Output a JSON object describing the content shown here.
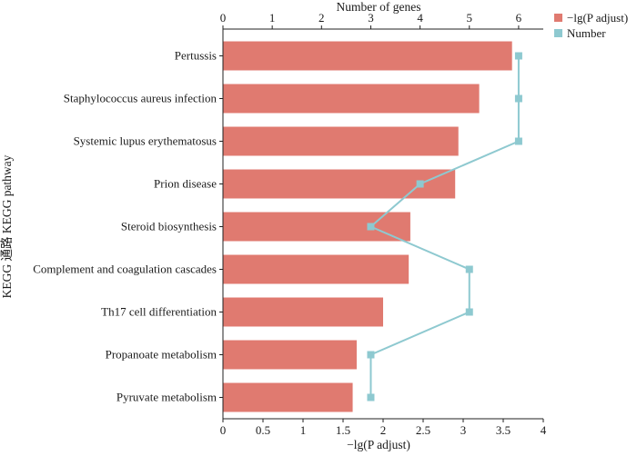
{
  "chart_data": {
    "type": "bar",
    "orientation": "horizontal",
    "bar_color": "#E07A70",
    "line_color": "#8EC9D0",
    "categories": [
      "Pertussis",
      "Staphylococcus aureus infection",
      "Systemic lupus erythematosus",
      "Prion disease",
      "Steroid biosynthesis",
      "Complement and coagulation cascades",
      "Th17 cell differentiation",
      "Propanoate metabolism",
      "Pyruvate metabolism"
    ],
    "series": [
      {
        "name": "−lg(P adjust)",
        "axis": "bottom",
        "kind": "bar",
        "values": [
          3.61,
          3.2,
          2.94,
          2.9,
          2.34,
          2.32,
          2.0,
          1.67,
          1.62
        ]
      },
      {
        "name": "Number",
        "axis": "top",
        "kind": "line",
        "values": [
          6,
          6,
          6,
          4,
          3,
          5,
          5,
          3,
          3
        ]
      }
    ],
    "xaxis_bottom": {
      "label": "−lg(P adjust)",
      "range": [
        0,
        4
      ],
      "ticks": [
        "0",
        "0.5",
        "1",
        "1.5",
        "2",
        "2.5",
        "3",
        "3.5",
        "4"
      ]
    },
    "xaxis_top": {
      "label": "Number of genes",
      "range": [
        0,
        6.5
      ],
      "ticks": [
        "0",
        "1",
        "2",
        "3",
        "4",
        "5",
        "6"
      ]
    },
    "ylabel": "KEGG 通路  KEGG pathway",
    "legend": {
      "position": "top-right",
      "items": [
        "−lg(P adjust)",
        "Number"
      ]
    }
  }
}
